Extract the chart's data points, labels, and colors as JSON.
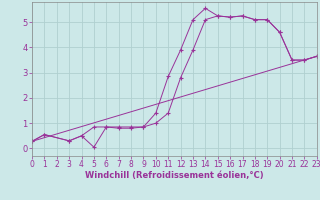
{
  "xlabel": "Windchill (Refroidissement éolien,°C)",
  "bg_color": "#cce8e8",
  "line_color": "#993399",
  "xlim": [
    0,
    23
  ],
  "ylim": [
    -0.3,
    5.8
  ],
  "yticks": [
    0,
    1,
    2,
    3,
    4,
    5
  ],
  "xticks": [
    0,
    1,
    2,
    3,
    4,
    5,
    6,
    7,
    8,
    9,
    10,
    11,
    12,
    13,
    14,
    15,
    16,
    17,
    18,
    19,
    20,
    21,
    22,
    23
  ],
  "series": [
    {
      "x": [
        0,
        1,
        3,
        4,
        5,
        6,
        7,
        8,
        9,
        10,
        11,
        12,
        13,
        14,
        15,
        16,
        17,
        18,
        19,
        20,
        21,
        22,
        23
      ],
      "y": [
        0.28,
        0.55,
        0.3,
        0.5,
        0.85,
        0.85,
        0.8,
        0.8,
        0.85,
        1.4,
        2.85,
        3.9,
        5.1,
        5.55,
        5.25,
        5.2,
        5.25,
        5.1,
        5.1,
        4.6,
        3.5,
        3.5,
        3.65
      ],
      "marker": true
    },
    {
      "x": [
        0,
        1,
        3,
        4,
        5,
        6,
        7,
        8,
        9,
        10,
        11,
        12,
        13,
        14,
        15,
        16,
        17,
        18,
        19,
        20,
        21,
        22,
        23
      ],
      "y": [
        0.28,
        0.55,
        0.3,
        0.5,
        0.05,
        0.85,
        0.85,
        0.85,
        0.85,
        1.0,
        1.4,
        2.8,
        3.9,
        5.1,
        5.25,
        5.2,
        5.25,
        5.1,
        5.1,
        4.6,
        3.5,
        3.5,
        3.65
      ],
      "marker": true
    },
    {
      "x": [
        0,
        23
      ],
      "y": [
        0.28,
        3.65
      ],
      "marker": false
    }
  ],
  "tick_fontsize": 5.5,
  "xlabel_fontsize": 6.0,
  "grid_color": "#b0d0d0",
  "spine_color": "#888888"
}
